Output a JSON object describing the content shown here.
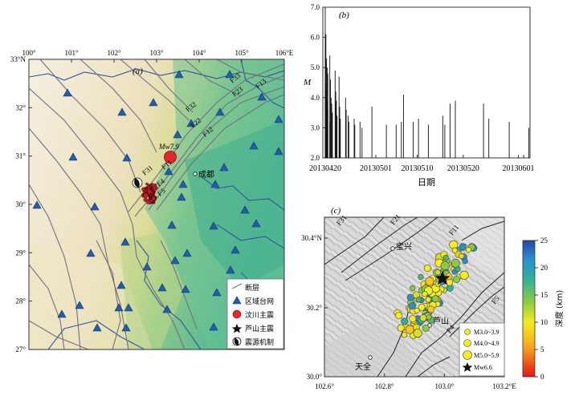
{
  "panel_a": {
    "label": "(a)",
    "lon_ticks": [
      "100°",
      "101°",
      "102°",
      "103°",
      "104°",
      "105°",
      "106°E"
    ],
    "lat_ticks": [
      "33°N",
      "32°",
      "31°",
      "30°",
      "29°",
      "28°",
      "27°"
    ],
    "fault_labels": [
      "F13",
      "F23",
      "F33",
      "F32",
      "F22",
      "F12",
      "F11",
      "F31",
      "F4",
      "F5"
    ],
    "mainshock_label": "Mw7.9",
    "city": "成都",
    "legend": [
      {
        "name": "fault",
        "label": "断层"
      },
      {
        "name": "station",
        "label": "区域台网"
      },
      {
        "name": "wenchuan",
        "label": "汶川主震"
      },
      {
        "name": "lushan",
        "label": "芦山主震"
      },
      {
        "name": "focal",
        "label": "震源机制"
      }
    ]
  },
  "panel_b": {
    "label": "(b)",
    "ylabel": "M",
    "xlabel": "日期",
    "y_ticks": [
      "2.0",
      "3.0",
      "4.0",
      "5.0",
      "6.0",
      "7.0"
    ],
    "x_ticks": [
      "20130420",
      "20130501",
      "20130510",
      "20130520",
      "20130601"
    ],
    "chart_data": {
      "type": "bar",
      "title": "",
      "xlabel": "日期",
      "ylabel": "M",
      "ylim": [
        2.0,
        7.0
      ],
      "x_range": [
        "2013-04-20",
        "2013-06-03"
      ],
      "events": [
        [
          "2013-04-20",
          7.0
        ],
        [
          "2013-04-20",
          6.1
        ],
        [
          "2013-04-20",
          5.3
        ],
        [
          "2013-04-20",
          5.0
        ],
        [
          "2013-04-20",
          4.8
        ],
        [
          "2013-04-20",
          4.5
        ],
        [
          "2013-04-20",
          4.3
        ],
        [
          "2013-04-20",
          4.1
        ],
        [
          "2013-04-20",
          3.9
        ],
        [
          "2013-04-20",
          3.6
        ],
        [
          "2013-04-21",
          5.4
        ],
        [
          "2013-04-21",
          4.6
        ],
        [
          "2013-04-21",
          4.0
        ],
        [
          "2013-04-21",
          3.8
        ],
        [
          "2013-04-21",
          3.5
        ],
        [
          "2013-04-21",
          3.2
        ],
        [
          "2013-04-22",
          4.9
        ],
        [
          "2013-04-22",
          4.2
        ],
        [
          "2013-04-22",
          3.9
        ],
        [
          "2013-04-22",
          3.4
        ],
        [
          "2013-04-23",
          4.7
        ],
        [
          "2013-04-23",
          3.7
        ],
        [
          "2013-04-23",
          3.3
        ],
        [
          "2013-04-24",
          4.0
        ],
        [
          "2013-04-24",
          3.6
        ],
        [
          "2013-04-25",
          3.4
        ],
        [
          "2013-04-25",
          3.2
        ],
        [
          "2013-04-26",
          3.3
        ],
        [
          "2013-04-26",
          3.1
        ],
        [
          "2013-04-27",
          3.2
        ],
        [
          "2013-04-28",
          3.0
        ],
        [
          "2013-04-30",
          3.7
        ],
        [
          "2013-05-03",
          3.1
        ],
        [
          "2013-05-05",
          3.1
        ],
        [
          "2013-05-06",
          3.2
        ],
        [
          "2013-05-07",
          4.1
        ],
        [
          "2013-05-09",
          3.2
        ],
        [
          "2013-05-10",
          3.3
        ],
        [
          "2013-05-12",
          3.1
        ],
        [
          "2013-05-15",
          3.4
        ],
        [
          "2013-05-16",
          3.1
        ],
        [
          "2013-05-17",
          3.8
        ],
        [
          "2013-05-18",
          3.9
        ],
        [
          "2013-05-24",
          3.8
        ],
        [
          "2013-05-25",
          3.3
        ],
        [
          "2013-05-30",
          3.2
        ],
        [
          "2013-06-02",
          2.1
        ],
        [
          "2013-06-03",
          3.0
        ]
      ]
    }
  },
  "panel_c": {
    "label": "(c)",
    "lon_ticks": [
      "102.6°",
      "102.8°",
      "103.0°",
      "103.2°E"
    ],
    "lat_ticks": [
      "30.4°N",
      "30.2°",
      "30.0°"
    ],
    "fault_labels": [
      "F31",
      "F21",
      "F11",
      "F5",
      "F4"
    ],
    "towns": [
      "宝兴",
      "芦山",
      "天全"
    ],
    "colorbar": {
      "label": "深度 (km)",
      "ticks": [
        "0",
        "5",
        "10",
        "15",
        "20",
        "25"
      ]
    },
    "legend": [
      {
        "name": "m3",
        "label": "M3.0~3.9"
      },
      {
        "name": "m4",
        "label": "M4.0~4.9"
      },
      {
        "name": "m5",
        "label": "M5.0~5.9"
      },
      {
        "name": "mw",
        "label": "Mw6.6"
      }
    ]
  }
}
